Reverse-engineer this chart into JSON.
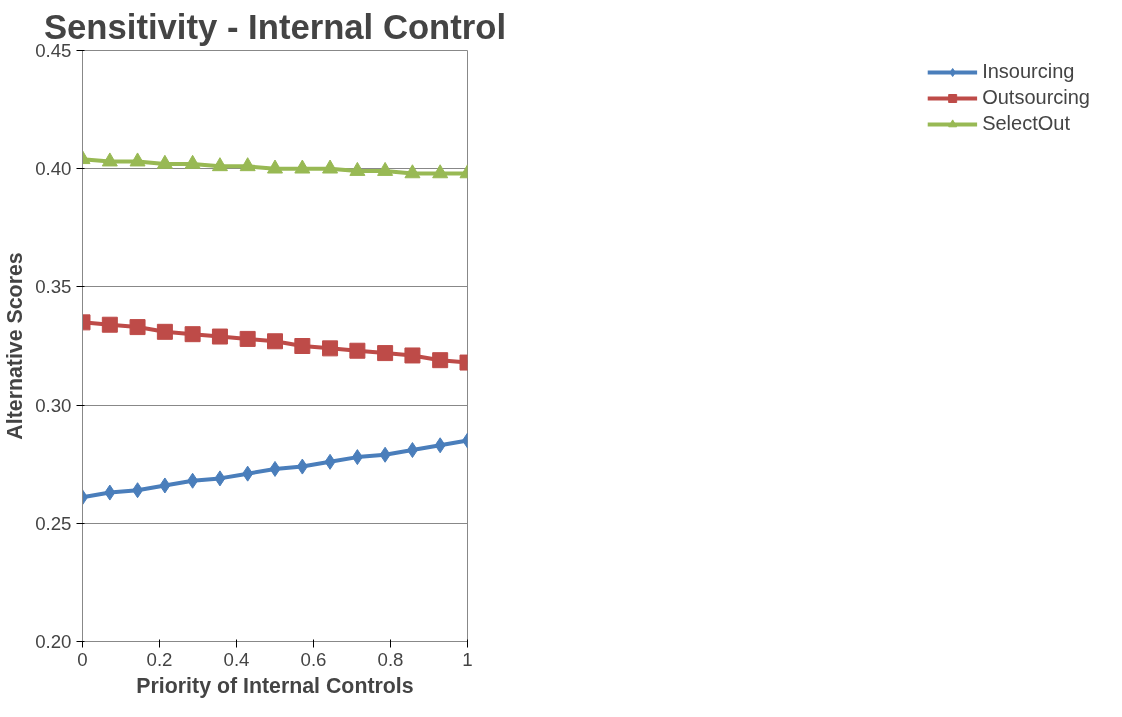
{
  "chart_data": {
    "type": "line",
    "title": "Sensitivity - Internal Control",
    "xlabel": "Priority of Internal Controls",
    "ylabel": "Alternative Scores",
    "x": [
      0,
      0.071,
      0.143,
      0.214,
      0.286,
      0.357,
      0.429,
      0.5,
      0.571,
      0.643,
      0.714,
      0.786,
      0.857,
      0.929,
      1
    ],
    "series": [
      {
        "name": "Insourcing",
        "color": "#4a7ebb",
        "marker": "diamond",
        "values": [
          0.261,
          0.263,
          0.264,
          0.266,
          0.268,
          0.269,
          0.271,
          0.273,
          0.274,
          0.276,
          0.278,
          0.279,
          0.281,
          0.283,
          0.285
        ]
      },
      {
        "name": "Outsourcing",
        "color": "#be4b48",
        "marker": "square",
        "values": [
          0.335,
          0.334,
          0.333,
          0.331,
          0.33,
          0.329,
          0.328,
          0.327,
          0.325,
          0.324,
          0.323,
          0.322,
          0.321,
          0.319,
          0.318
        ]
      },
      {
        "name": "SelectOut",
        "color": "#98b954",
        "marker": "triangle",
        "values": [
          0.404,
          0.403,
          0.403,
          0.402,
          0.402,
          0.401,
          0.401,
          0.4,
          0.4,
          0.4,
          0.399,
          0.399,
          0.398,
          0.398,
          0.398
        ]
      }
    ],
    "xlim": [
      0,
      1
    ],
    "xticks": [
      0,
      0.2,
      0.4,
      0.6,
      0.8,
      1
    ],
    "ylim": [
      0.2,
      0.45
    ],
    "yticks": [
      {
        "value": 0.2,
        "label": "0.20"
      },
      {
        "value": 0.25,
        "label": "0.25"
      },
      {
        "value": 0.3,
        "label": "0.30"
      },
      {
        "value": 0.35,
        "label": "0.35"
      },
      {
        "value": 0.4,
        "label": "0.40"
      },
      {
        "value": 0.45,
        "label": "0.45"
      }
    ],
    "grid": "y",
    "legend": "right",
    "line_style": "solid"
  }
}
